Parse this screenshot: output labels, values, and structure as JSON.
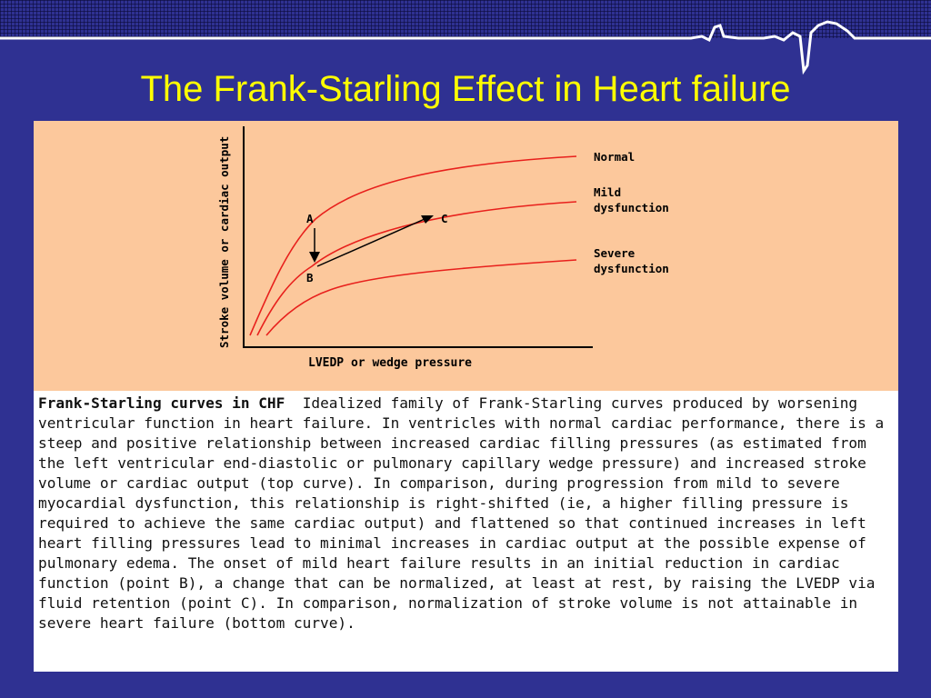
{
  "slide": {
    "title": "The Frank-Starling Effect in Heart failure",
    "background_color": "#2f3192",
    "title_color": "#ffff00"
  },
  "diagram": {
    "panel_color": "#fcc89c",
    "curve_color": "#e8201c",
    "y_axis_label": "Stroke volume or cardiac output",
    "x_axis_label": "LVEDP or wedge pressure",
    "curves": [
      {
        "label_lines": [
          "Normal"
        ]
      },
      {
        "label_lines": [
          "Mild",
          "dysfunction"
        ]
      },
      {
        "label_lines": [
          "Severe",
          "dysfunction"
        ]
      }
    ],
    "points": {
      "a": "A",
      "b": "B",
      "c": "C"
    }
  },
  "caption": {
    "title": "Frank-Starling curves in CHF",
    "body": "Idealized family of Frank-Starling curves produced by worsening ventricular function in heart failure. In ventricles with normal cardiac performance, there is a steep and positive relationship between increased cardiac filling pressures (as estimated from the left ventricular end-diastolic or pulmonary capillary wedge pressure) and increased stroke volume or cardiac output (top curve). In comparison, during progression from mild to severe myocardial dysfunction, this relationship is right-shifted (ie, a higher filling pressure is required to achieve the same cardiac output) and flattened so that continued increases in left heart filling pressures lead to minimal increases in cardiac output at the possible expense of pulmonary edema. The onset of mild heart failure results in an initial reduction in cardiac function (point B), a change that can be normalized, at least at rest, by raising the LVEDP via fluid retention (point C). In comparison, normalization of stroke volume is not attainable in severe heart failure (bottom curve)."
  }
}
